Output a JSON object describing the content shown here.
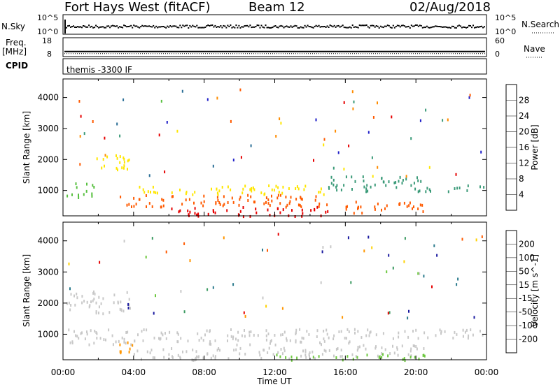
{
  "header": {
    "station": "Fort Hays West (fitACF)",
    "beam": "Beam 12",
    "date": "02/Aug/2018"
  },
  "strips": {
    "nsky": {
      "left_label": "N.Sky",
      "left_ticks": [
        "10^5",
        "10^0"
      ],
      "right_ticks": [
        "10^5",
        "10^0"
      ],
      "right_label": "N.Search"
    },
    "freq": {
      "left_label_line1": "Freq.",
      "left_label_line2": "[MHz]",
      "left_ticks": [
        "18",
        "8"
      ],
      "right_ticks": [
        "60",
        "0"
      ],
      "right_label": "Nave",
      "frequency_mhz": 10.5
    },
    "cpid": {
      "label": "CPID",
      "text": "themis -3300 IF"
    }
  },
  "colors": {
    "power": [
      "#1f1fc8",
      "#2a6e96",
      "#3a9a78",
      "#58c040",
      "#ffe600",
      "#ff8c00",
      "#ff5a00",
      "#e60000"
    ],
    "velocity": [
      "#1a1aa0",
      "#2a7a8c",
      "#3a9a60",
      "#6ec840",
      "#c8c8c8",
      "#ffd200",
      "#ff9600",
      "#ff5a00",
      "#e60000"
    ],
    "ground_scatter": "#c8c8c8"
  },
  "chart_data": [
    {
      "type": "heatmap",
      "title": "",
      "ylabel": "Slant Range [km]",
      "xlabel": "",
      "ylim": [
        180,
        4600
      ],
      "xlim_hours": [
        0,
        24
      ],
      "yticks": [
        "1000",
        "2000",
        "3000",
        "4000"
      ],
      "colorbar_label": "Power [dB]",
      "colorbar_ticks": [
        "4",
        "8",
        "12",
        "16",
        "20",
        "24",
        "28"
      ],
      "colorbar_range": [
        0,
        30
      ],
      "scatter_regions": [
        {
          "t0": 0.2,
          "t1": 1.8,
          "r0": 800,
          "r1": 1300,
          "level": 3
        },
        {
          "t0": 1.8,
          "t1": 3.8,
          "r0": 1700,
          "r1": 2300,
          "level": 4
        },
        {
          "t0": 3.2,
          "t1": 15.0,
          "r0": 500,
          "r1": 900,
          "level": 6
        },
        {
          "t0": 4.0,
          "t1": 14.8,
          "r0": 900,
          "r1": 1200,
          "level": 4
        },
        {
          "t0": 6.0,
          "t1": 15.0,
          "r0": 200,
          "r1": 500,
          "level": 7
        },
        {
          "t0": 15.0,
          "t1": 20.5,
          "r0": 1000,
          "r1": 1500,
          "level": 2
        },
        {
          "t0": 16.0,
          "t1": 20.5,
          "r0": 300,
          "r1": 700,
          "level": 6
        },
        {
          "t0": 20.5,
          "t1": 24.0,
          "r0": 1000,
          "r1": 1200,
          "level": 2
        }
      ]
    },
    {
      "type": "heatmap",
      "title": "",
      "ylabel": "Slant Range [km]",
      "xlabel": "Time UT",
      "ylim": [
        180,
        4600
      ],
      "xlim_hours": [
        0,
        24
      ],
      "yticks": [
        "1000",
        "2000",
        "3000",
        "4000"
      ],
      "xticks": [
        "00:00",
        "04:00",
        "08:00",
        "12:00",
        "16:00",
        "20:00",
        "00:00"
      ],
      "colorbar_label": "Velocity [m s^-1]",
      "colorbar_ticks": [
        "200",
        "100",
        "50",
        "15",
        "-15",
        "-50",
        "-100",
        "-200"
      ],
      "scatter_regions": [
        {
          "t0": 0.2,
          "t1": 3.8,
          "r0": 1700,
          "r1": 2400,
          "cat": "ground"
        },
        {
          "t0": 0.2,
          "t1": 16.5,
          "r0": 700,
          "r1": 1200,
          "cat": "ground"
        },
        {
          "t0": 3.0,
          "t1": 4.2,
          "r0": 400,
          "r1": 800,
          "cat": "neg50"
        },
        {
          "t0": 4.0,
          "t1": 16.0,
          "r0": 200,
          "r1": 600,
          "cat": "ground"
        },
        {
          "t0": 16.0,
          "t1": 20.5,
          "r0": 300,
          "r1": 700,
          "cat": "ground"
        },
        {
          "t0": 12.0,
          "t1": 20.5,
          "r0": 200,
          "r1": 400,
          "cat": "pos15"
        },
        {
          "t0": 16.5,
          "t1": 24.0,
          "r0": 900,
          "r1": 1200,
          "cat": "ground"
        }
      ]
    }
  ]
}
